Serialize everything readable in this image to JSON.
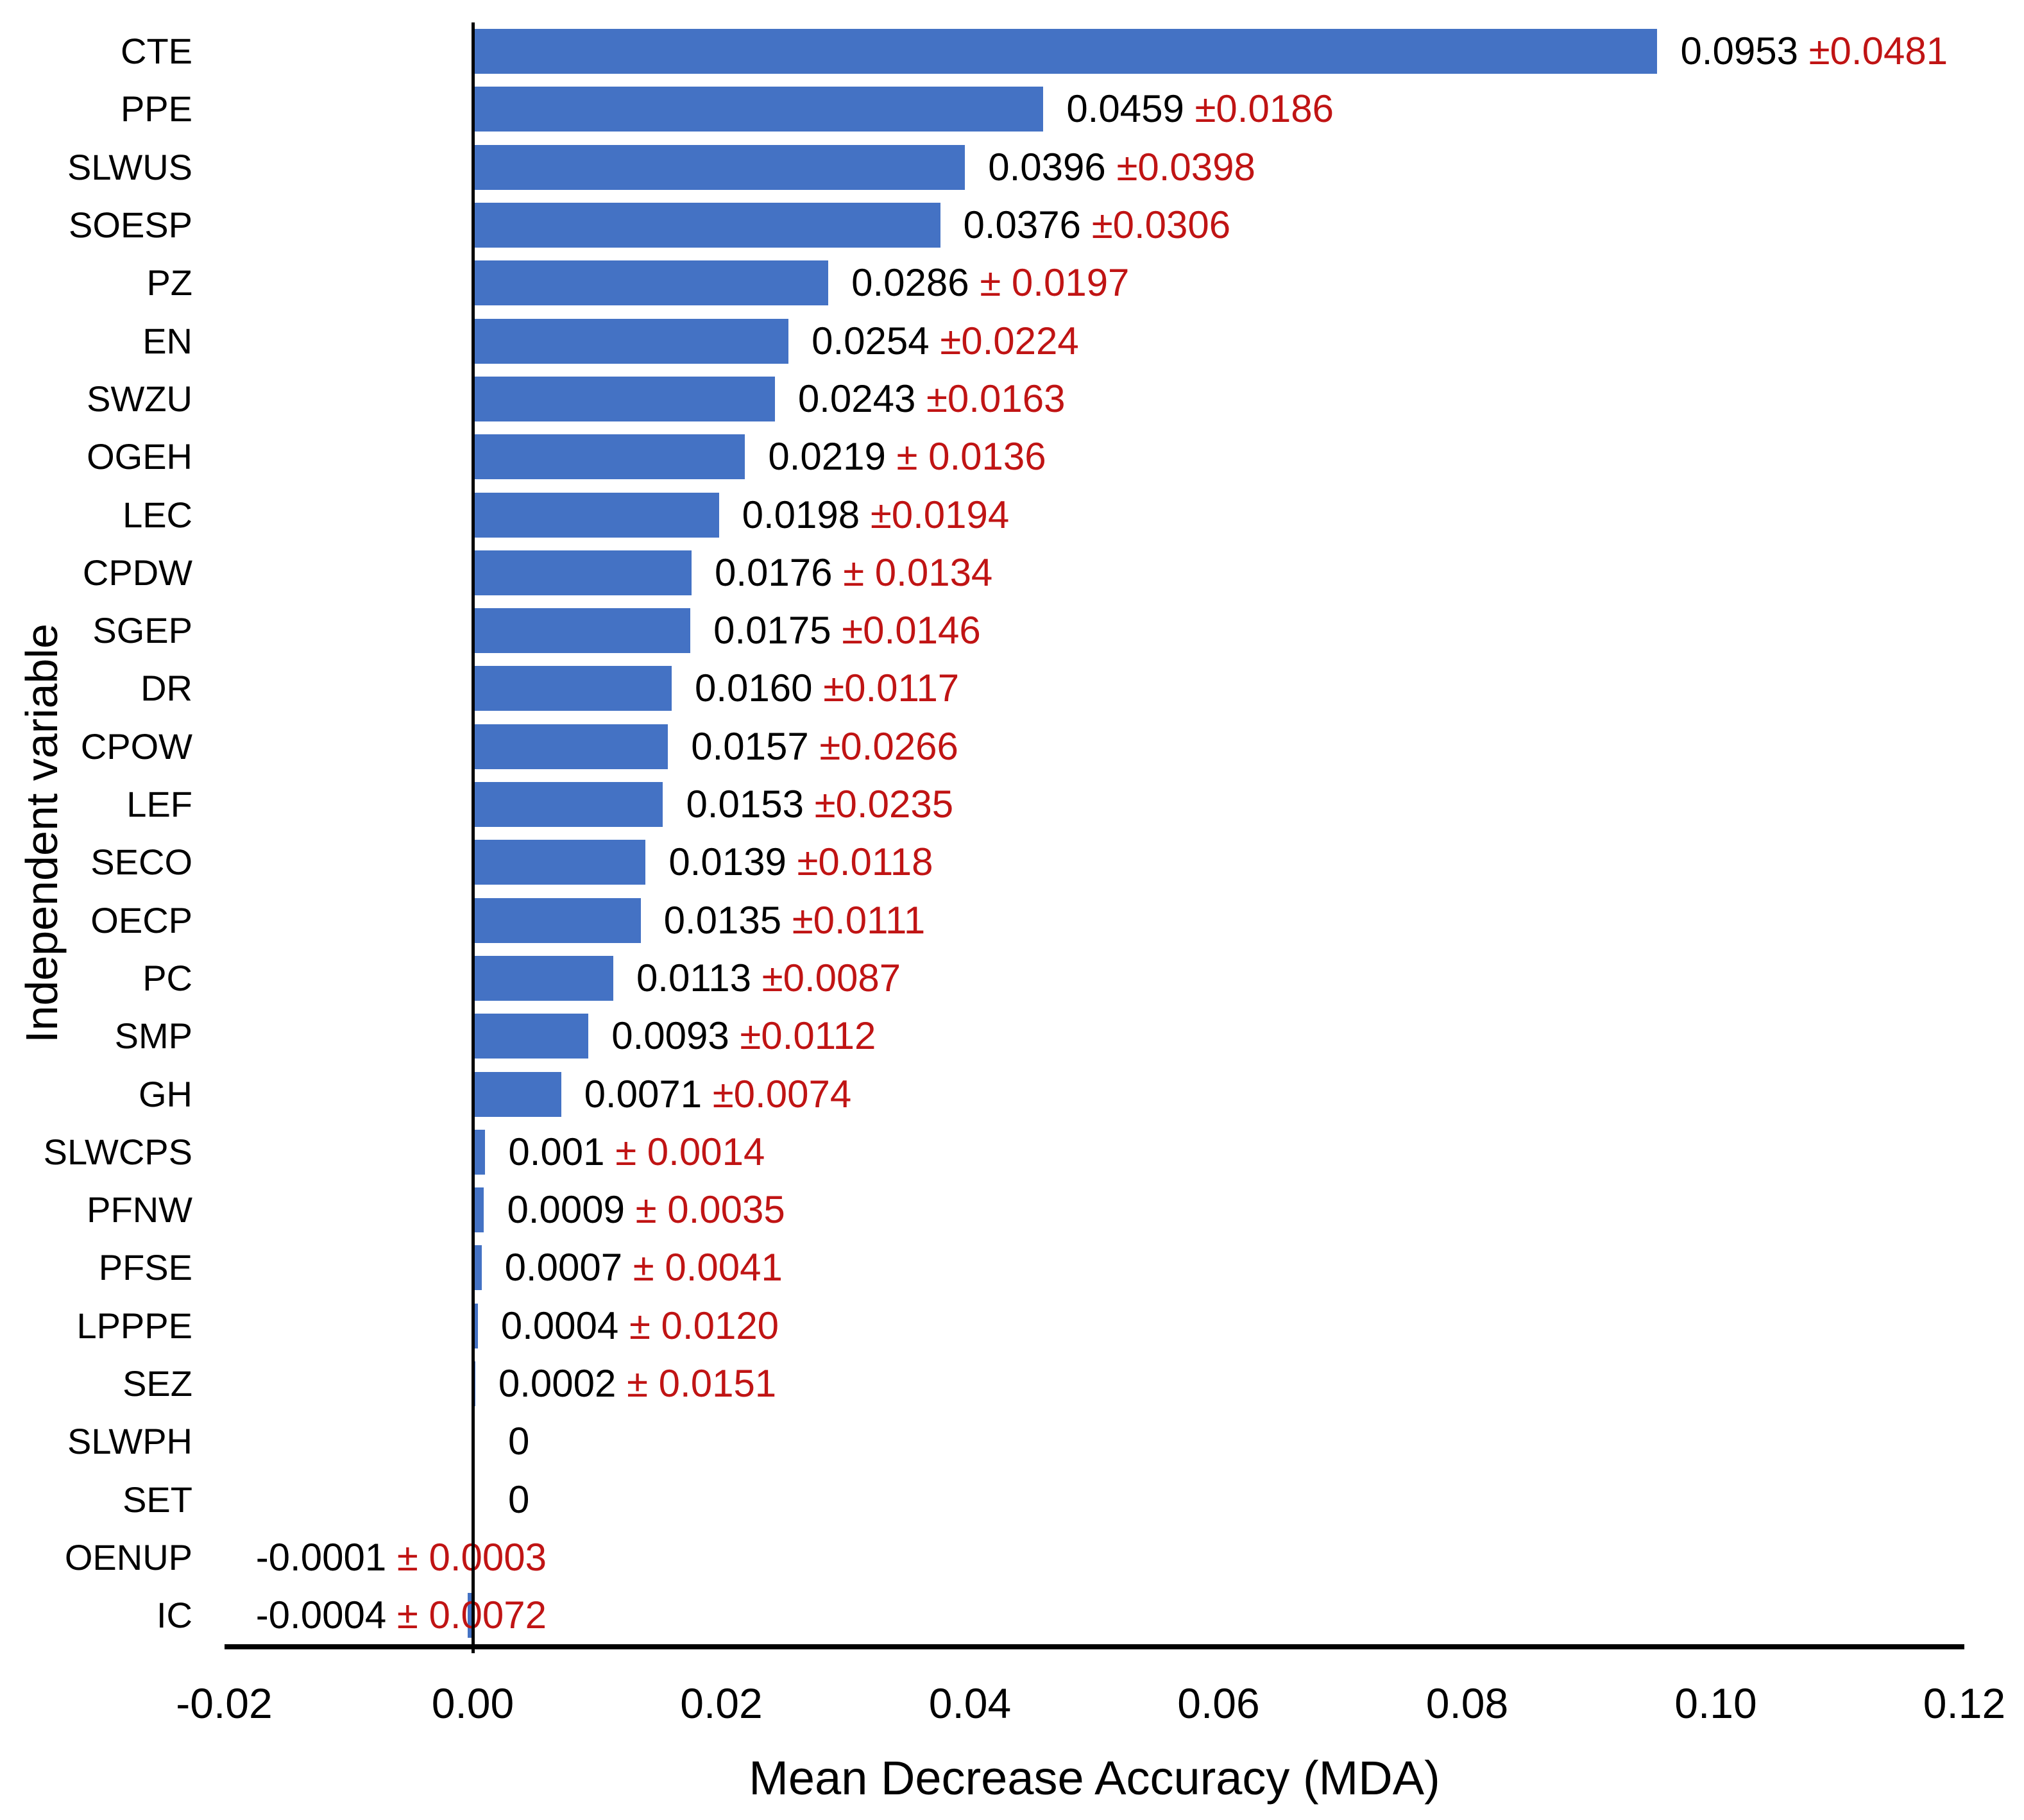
{
  "chart_data": {
    "type": "bar",
    "orientation": "horizontal",
    "xlabel": "Mean Decrease Accuracy (MDA)",
    "ylabel": "Independent variable",
    "xlim": [
      -0.02,
      0.12
    ],
    "grid": false,
    "legend": false,
    "bar_color": "#4472C4",
    "value_text_color": "#000000",
    "error_text_color": "#C01414",
    "axis_color": "#000000",
    "x_ticks": [
      "-0.02",
      "0.00",
      "0.02",
      "0.04",
      "0.06",
      "0.08",
      "0.10",
      "0.12"
    ],
    "x_tick_values": [
      -0.02,
      0.0,
      0.02,
      0.04,
      0.06,
      0.08,
      0.1,
      0.12
    ],
    "categories": [
      "CTE",
      "PPE",
      "SLWUS",
      "SOESP",
      "PZ",
      "EN",
      "SWZU",
      "OGEH",
      "LEC",
      "CPDW",
      "SGEP",
      "DR",
      "CPOW",
      "LEF",
      "SECO",
      "OECP",
      "PC",
      "SMP",
      "GH",
      "SLWCPS",
      "PFNW",
      "PFSE",
      "LPPPE",
      "SEZ",
      "SLWPH",
      "SET",
      "OENUP",
      "IC"
    ],
    "values": [
      0.0953,
      0.0459,
      0.0396,
      0.0376,
      0.0286,
      0.0254,
      0.0243,
      0.0219,
      0.0198,
      0.0176,
      0.0175,
      0.016,
      0.0157,
      0.0153,
      0.0139,
      0.0135,
      0.0113,
      0.0093,
      0.0071,
      0.001,
      0.0009,
      0.0007,
      0.0004,
      0.0002,
      0,
      0,
      -0.0001,
      -0.0004
    ],
    "errors": [
      0.0481,
      0.0186,
      0.0398,
      0.0306,
      0.0197,
      0.0224,
      0.0163,
      0.0136,
      0.0194,
      0.0134,
      0.0146,
      0.0117,
      0.0266,
      0.0235,
      0.0118,
      0.0111,
      0.0087,
      0.0112,
      0.0074,
      0.0014,
      0.0035,
      0.0041,
      0.012,
      0.0151,
      null,
      null,
      0.0003,
      0.0072
    ],
    "value_labels": [
      "0.0953",
      "0.0459",
      "0.0396",
      "0.0376",
      "0.0286",
      "0.0254",
      "0.0243",
      "0.0219",
      "0.0198",
      "0.0176",
      "0.0175",
      "0.0160",
      "0.0157",
      "0.0153",
      "0.0139",
      "0.0135",
      "0.0113",
      "0.0093",
      "0.0071",
      "0.001",
      "0.0009",
      "0.0007",
      "0.0004",
      "0.0002",
      "0",
      "0",
      "-0.0001",
      "-0.0004"
    ],
    "error_labels": [
      "±0.0481",
      "±0.0186",
      "±0.0398",
      "±0.0306",
      "± 0.0197",
      "±0.0224",
      "±0.0163",
      "± 0.0136",
      "±0.0194",
      "± 0.0134",
      "±0.0146",
      "±0.0117",
      "±0.0266",
      "±0.0235",
      "±0.0118",
      "±0.0111",
      "±0.0087",
      "±0.0112",
      "±0.0074",
      "± 0.0014",
      "± 0.0035",
      "± 0.0041",
      "± 0.0120",
      "± 0.0151",
      "",
      "",
      "± 0.0003",
      "± 0.0072"
    ]
  }
}
